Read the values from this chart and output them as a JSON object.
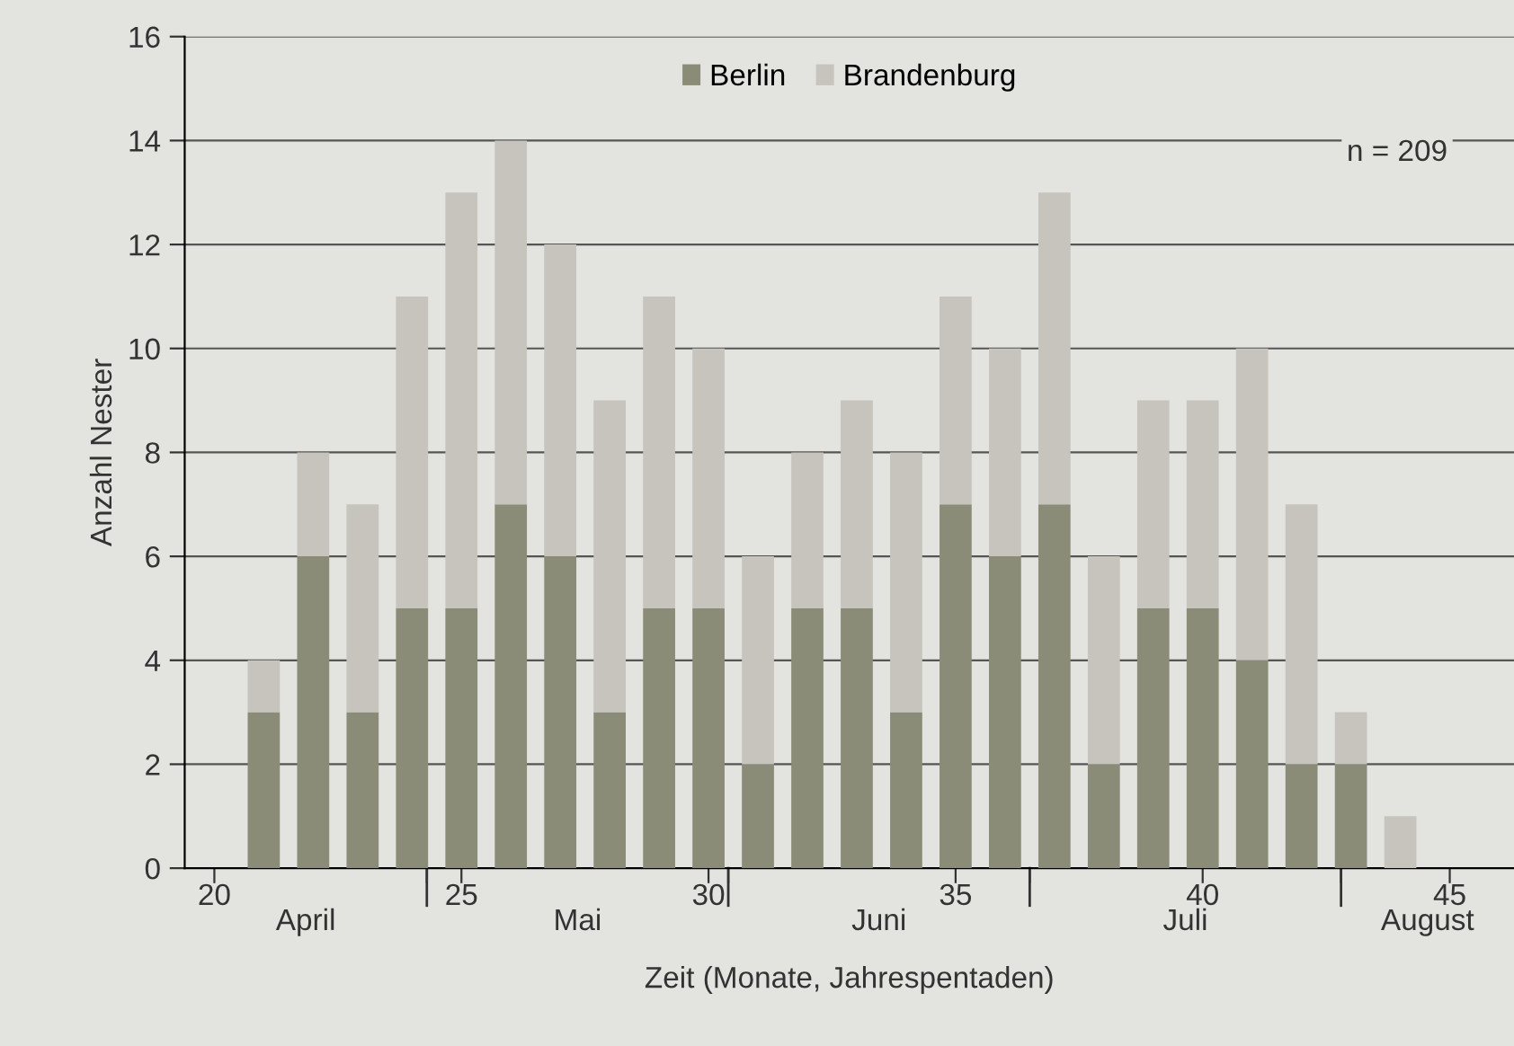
{
  "chart_data": {
    "type": "bar",
    "stacked": true,
    "xlabel": "Zeit (Monate, Jahrespentaden)",
    "ylabel": "Anzahl Nester",
    "x": [
      21,
      22,
      23,
      24,
      25,
      26,
      27,
      28,
      29,
      30,
      31,
      32,
      33,
      34,
      35,
      36,
      37,
      38,
      39,
      40,
      41,
      42,
      43,
      44
    ],
    "series": [
      {
        "name": "Berlin",
        "color": "#8a8c78",
        "values": [
          3,
          6,
          3,
          5,
          5,
          7,
          6,
          3,
          5,
          5,
          2,
          5,
          5,
          3,
          7,
          6,
          7,
          2,
          5,
          5,
          4,
          2,
          2,
          0
        ]
      },
      {
        "name": "Brandenburg",
        "color": "#c6c4bc",
        "values": [
          1,
          2,
          4,
          6,
          8,
          7,
          6,
          6,
          6,
          5,
          4,
          3,
          4,
          5,
          4,
          4,
          6,
          4,
          4,
          4,
          6,
          5,
          1,
          1
        ]
      }
    ],
    "xlim": [
      19.4,
      46.3
    ],
    "xticks": [
      20,
      25,
      30,
      35,
      40,
      45,
      {
        "value": 24.3,
        "label": null
      },
      {
        "value": 30.4,
        "label": null
      },
      {
        "value": 36.5,
        "label": null
      },
      {
        "value": 42.8,
        "label": null
      }
    ],
    "ylim": [
      0,
      16
    ],
    "yticks": [
      0,
      2,
      4,
      6,
      8,
      10,
      12,
      14,
      16
    ],
    "grid": "y",
    "legend": "top",
    "annotations": [
      "n = 209",
      "April",
      "Mai",
      "Juni",
      "Juli",
      "August"
    ]
  }
}
